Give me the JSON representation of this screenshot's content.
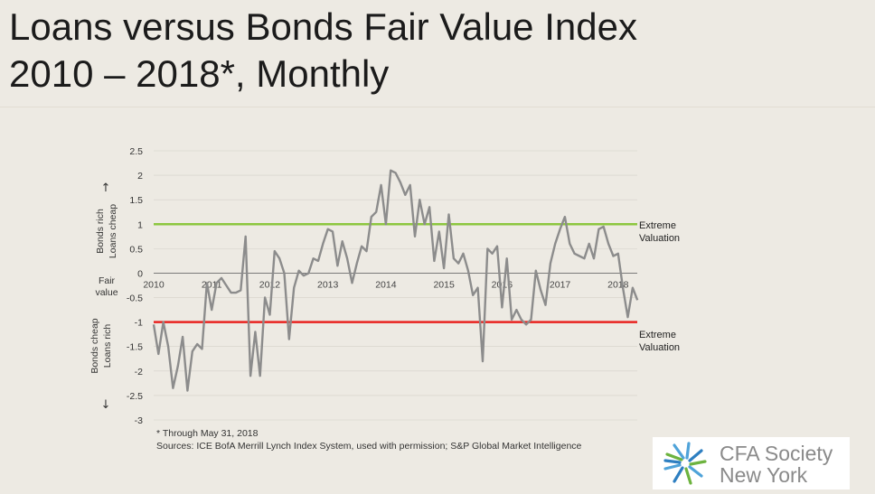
{
  "title": {
    "line1": "Loans versus Bonds Fair Value Index",
    "line2": "2010 – 2018*, Monthly"
  },
  "axis_side_labels": {
    "top_line1": "Bonds rich",
    "top_line2": "Loans cheap",
    "top_arrow": "↑",
    "middle_line1": "Fair",
    "middle_line2": "value",
    "bottom_line1": "Bonds cheap",
    "bottom_line2": "Loans rich",
    "bottom_arrow": "↓"
  },
  "footnote": "* Through May 31, 2018",
  "source": "Sources: ICE BofA Merrill Lynch Index System, used with permission; S&P Global Market Intelligence",
  "logo": {
    "line1": "CFA Society",
    "line2": "New York",
    "icon": "cfa-pinwheel-icon"
  },
  "colors": {
    "line": "#8c8c8c",
    "upper_band": "#8cc63f",
    "lower_band": "#e8231f",
    "zero_line": "#7a7a7a",
    "grid": "#d4d0c8"
  },
  "chart_data": {
    "type": "line",
    "title": "Loans versus Bonds Fair Value Index",
    "subtitle": "2010 – 2018*, Monthly",
    "xlabel": "",
    "ylabel": "",
    "ylim": [
      -3,
      2.5
    ],
    "yticks": [
      2.5,
      2,
      1.5,
      1,
      0.5,
      0,
      -0.5,
      -1,
      -1.5,
      -2,
      -2.5,
      -3
    ],
    "ytick_labels": [
      "2.5",
      "2",
      "1.5",
      "1",
      "0.5",
      "0",
      "-0.5",
      "-1",
      "-1.5",
      "-2",
      "-2.5",
      "-3"
    ],
    "xticks": [
      2010,
      2011,
      2012,
      2013,
      2014,
      2015,
      2016,
      2017,
      2018
    ],
    "xtick_labels": [
      "2010",
      "2011",
      "2012",
      "2013",
      "2014",
      "2015",
      "2016",
      "2017",
      "2018"
    ],
    "xlim": [
      2010,
      2018.33
    ],
    "grid": true,
    "reference_lines": [
      {
        "y": 1,
        "label_line1": "Extreme",
        "label_line2": "Valuation",
        "color": "#8cc63f"
      },
      {
        "y": -1,
        "label_line1": "Extreme",
        "label_line2": "Valuation",
        "color": "#e8231f"
      }
    ],
    "series": [
      {
        "x": [
          2010.0,
          2010.083,
          2010.167,
          2010.25,
          2010.333,
          2010.417,
          2010.5,
          2010.583,
          2010.667,
          2010.75,
          2010.833,
          2010.917,
          2011.0,
          2011.083,
          2011.167,
          2011.25,
          2011.333,
          2011.417,
          2011.5,
          2011.583,
          2011.667,
          2011.75,
          2011.833,
          2011.917,
          2012.0,
          2012.083,
          2012.167,
          2012.25,
          2012.333,
          2012.417,
          2012.5,
          2012.583,
          2012.667,
          2012.75,
          2012.833,
          2012.917,
          2013.0,
          2013.083,
          2013.167,
          2013.25,
          2013.333,
          2013.417,
          2013.5,
          2013.583,
          2013.667,
          2013.75,
          2013.833,
          2013.917,
          2014.0,
          2014.083,
          2014.167,
          2014.25,
          2014.333,
          2014.417,
          2014.5,
          2014.583,
          2014.667,
          2014.75,
          2014.833,
          2014.917,
          2015.0,
          2015.083,
          2015.167,
          2015.25,
          2015.333,
          2015.417,
          2015.5,
          2015.583,
          2015.667,
          2015.75,
          2015.833,
          2015.917,
          2016.0,
          2016.083,
          2016.167,
          2016.25,
          2016.333,
          2016.417,
          2016.5,
          2016.583,
          2016.667,
          2016.75,
          2016.833,
          2016.917,
          2017.0,
          2017.083,
          2017.167,
          2017.25,
          2017.333,
          2017.417,
          2017.5,
          2017.583,
          2017.667,
          2017.75,
          2017.833,
          2017.917,
          2018.0,
          2018.083,
          2018.167,
          2018.25,
          2018.333
        ],
        "values": [
          -1.05,
          -1.65,
          -1.0,
          -1.5,
          -2.35,
          -1.9,
          -1.3,
          -2.4,
          -1.6,
          -1.45,
          -1.55,
          -0.2,
          -0.75,
          -0.2,
          -0.1,
          -0.25,
          -0.4,
          -0.4,
          -0.35,
          0.75,
          -2.1,
          -1.2,
          -2.1,
          -0.5,
          -0.85,
          0.45,
          0.3,
          0.0,
          -1.35,
          -0.3,
          0.05,
          -0.05,
          0.0,
          0.3,
          0.25,
          0.6,
          0.9,
          0.85,
          0.15,
          0.65,
          0.3,
          -0.2,
          0.2,
          0.55,
          0.45,
          1.15,
          1.25,
          1.8,
          1.0,
          2.1,
          2.05,
          1.85,
          1.6,
          1.8,
          0.75,
          1.5,
          1.0,
          1.35,
          0.25,
          0.85,
          0.1,
          1.2,
          0.3,
          0.2,
          0.4,
          0.05,
          -0.45,
          -0.3,
          -1.8,
          0.5,
          0.4,
          0.55,
          -0.7,
          0.3,
          -0.95,
          -0.75,
          -0.95,
          -1.05,
          -0.95,
          0.05,
          -0.35,
          -0.65,
          0.2,
          0.6,
          0.9,
          1.15,
          0.6,
          0.4,
          0.35,
          0.3,
          0.6,
          0.3,
          0.9,
          0.95,
          0.6,
          0.35,
          0.4,
          -0.3,
          -0.9,
          -0.3,
          -0.55
        ]
      }
    ]
  }
}
